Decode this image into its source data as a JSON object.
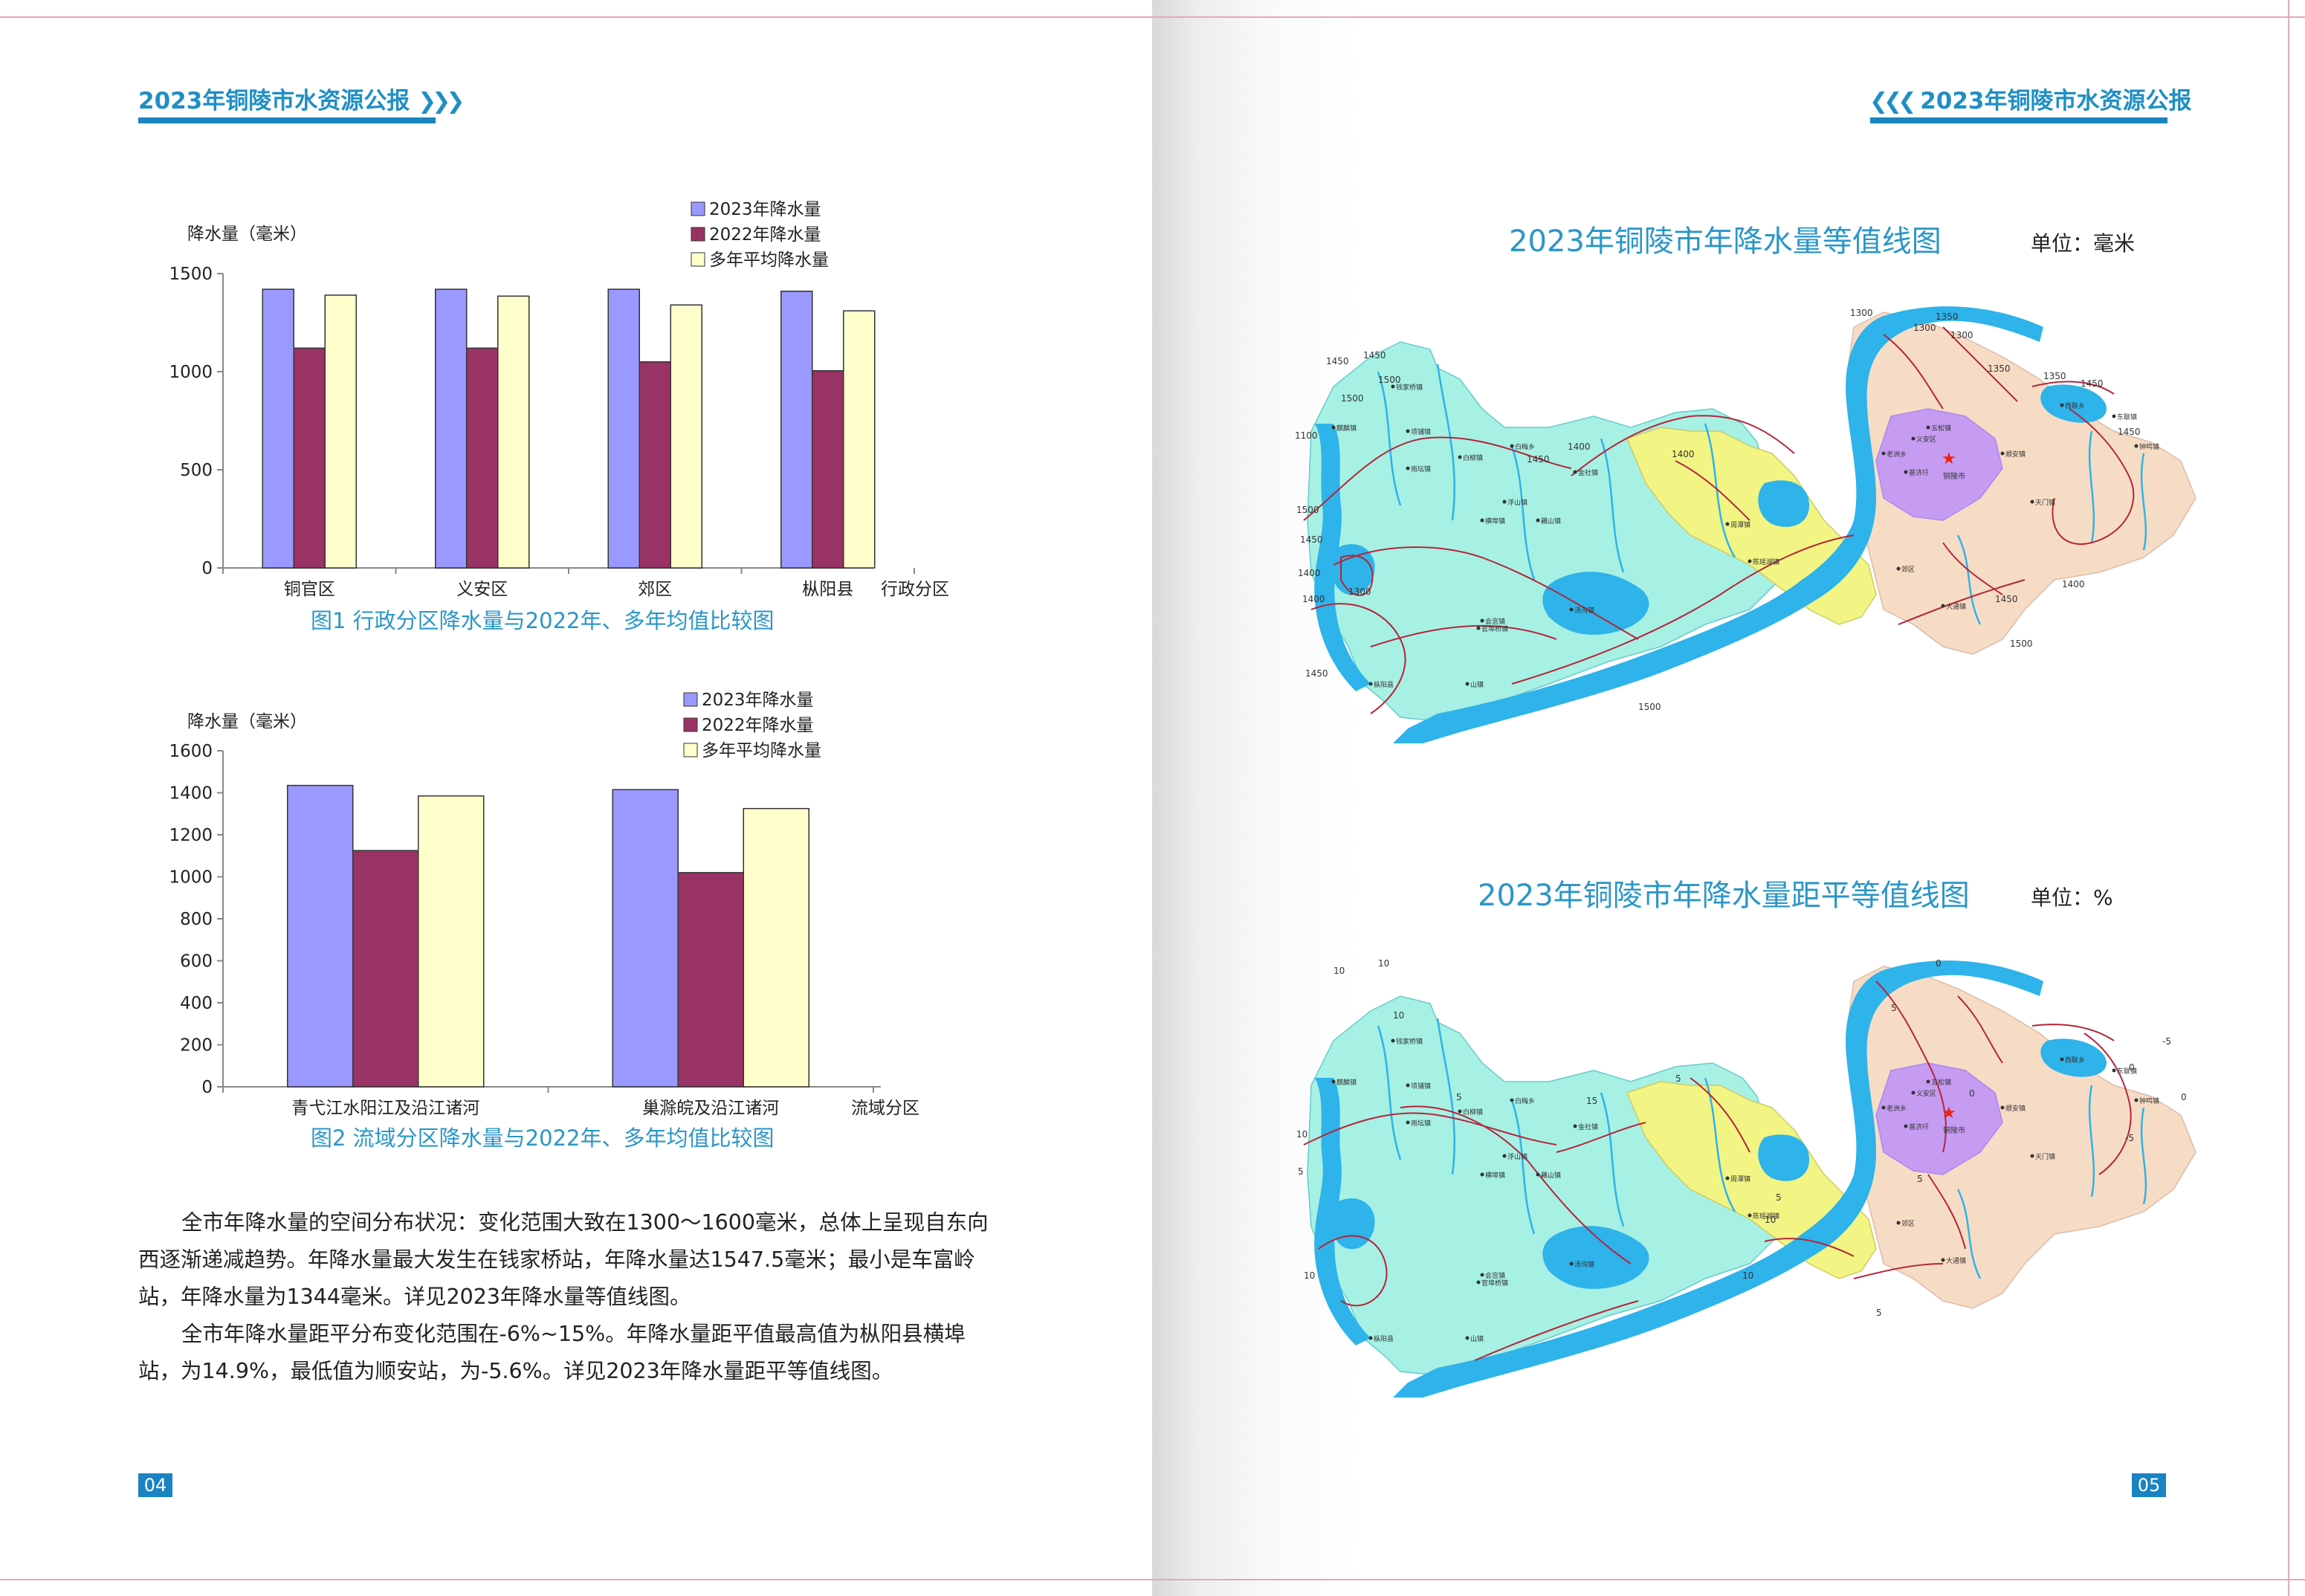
{
  "header": {
    "title": "2023年铜陵市水资源公报",
    "arrow_right": "❯❯❯",
    "arrow_left": "❮❮❮"
  },
  "colors": {
    "accent": "#1b84c1",
    "caption": "#2a96c8",
    "series_2023": "#9999ff",
    "series_2022": "#993366",
    "series_avg": "#ffffcc",
    "water": "#2eb3ea",
    "zone_teal": "#a7f0e4",
    "zone_yellow": "#f2f583",
    "zone_peach": "#f7dcc5",
    "zone_purple": "#c59cf2",
    "contour": "#b3263a"
  },
  "chart1": {
    "caption": "图1  行政分区降水量与2022年、多年均值比较图",
    "chart_data": {
      "type": "bar",
      "ylabel": "降水量（毫米）",
      "xlabel": "行政分区",
      "categories": [
        "铜官区",
        "义安区",
        "郊区",
        "枞阳县"
      ],
      "ylim": [
        0,
        1500
      ],
      "yticks": [
        0,
        500,
        1000,
        1500
      ],
      "legend_position": "top-right",
      "series": [
        {
          "name": "2023年降水量",
          "values": [
            1420,
            1420,
            1420,
            1410
          ]
        },
        {
          "name": "2022年降水量",
          "values": [
            1120,
            1120,
            1050,
            1005
          ]
        },
        {
          "name": "多年平均降水量",
          "values": [
            1390,
            1385,
            1340,
            1310
          ]
        }
      ]
    }
  },
  "chart2": {
    "caption": "图2  流域分区降水量与2022年、多年均值比较图",
    "chart_data": {
      "type": "bar",
      "ylabel": "降水量（毫米）",
      "xlabel": "流域分区",
      "categories": [
        "青弋江水阳江及沿江诸河",
        "巢滁皖及沿江诸河"
      ],
      "ylim": [
        0,
        1600
      ],
      "yticks": [
        0,
        200,
        400,
        600,
        800,
        1000,
        1200,
        1400,
        1600
      ],
      "legend_position": "top-right",
      "series": [
        {
          "name": "2023年降水量",
          "values": [
            1435,
            1415
          ]
        },
        {
          "name": "2022年降水量",
          "values": [
            1125,
            1020
          ]
        },
        {
          "name": "多年平均降水量",
          "values": [
            1385,
            1325
          ]
        }
      ]
    }
  },
  "text": {
    "p1_l1": "全市年降水量的空间分布状况：变化范围大致在1300～1600毫米，总体上呈现自东向",
    "p1_l2": "西逐渐递减趋势。年降水量最大发生在钱家桥站，年降水量达1547.5毫米；最小是车富岭",
    "p1_l3": "站，年降水量为1344毫米。详见2023年降水量等值线图。",
    "p2_l1": "全市年降水量距平分布变化范围在-6%~15%。年降水量距平值最高值为枞阳县横埠",
    "p2_l2": "站，为14.9%，最低值为顺安站，为-5.6%。详见2023年降水量距平等值线图。"
  },
  "page_left_num": "04",
  "page_right_num": "05",
  "map1": {
    "title": "2023年铜陵市年降水量等值线图",
    "unit": "单位：毫米",
    "contour_labels": [
      "1450",
      "1450",
      "1500",
      "1500",
      "1100",
      "1500",
      "1450",
      "1400",
      "1400",
      "1450",
      "1300",
      "1400",
      "1450",
      "1400",
      "1500",
      "1300",
      "1300",
      "1300",
      "1350",
      "1350",
      "1450",
      "1450",
      "1400",
      "1450",
      "1500",
      "1350"
    ]
  },
  "map2": {
    "title": "2023年铜陵市年降水量距平等值线图",
    "unit": "单位：%",
    "contour_labels": [
      "10",
      "10",
      "10",
      "10",
      "5",
      "10",
      "5",
      "15",
      "5",
      "5",
      "5",
      "0",
      "0",
      "0",
      "-5",
      "-5",
      "0",
      "5",
      "5",
      "10",
      "10"
    ]
  },
  "map_places": [
    "铜陵市",
    "钱家桥镇",
    "枞阳县",
    "义安区",
    "郊区",
    "西联乡",
    "五松镇",
    "大通镇",
    "顺安镇",
    "钟鸣镇",
    "天门镇",
    "东联镇",
    "老洲乡",
    "横埠镇",
    "会宫镇",
    "汤沟镇",
    "官埠桥镇",
    "周潭镇",
    "浮山镇",
    "陈瑶湖镇",
    "白柳镇",
    "雨坛镇",
    "金社镇",
    "麒麟镇",
    "项铺镇",
    "白梅乡",
    "藕山镇",
    "山镇",
    "普济圩"
  ]
}
